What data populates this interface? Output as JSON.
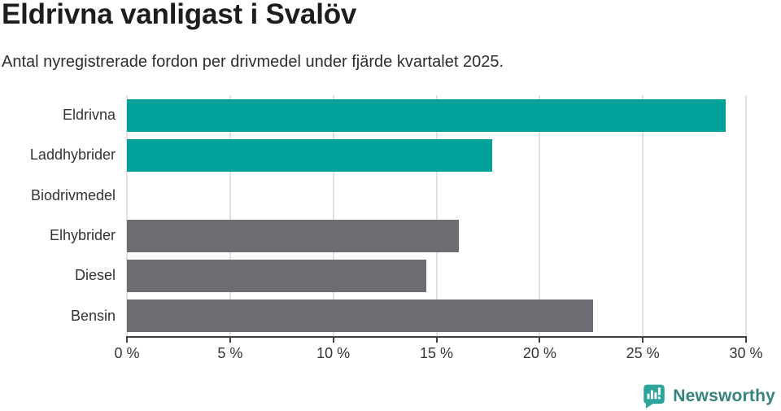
{
  "header": {
    "title": "Eldrivna vanligast i Svalöv",
    "subtitle": "Antal nyregistrerade fordon per drivmedel under fjärde kvartalet 2025."
  },
  "chart_data": {
    "type": "bar",
    "orientation": "horizontal",
    "categories": [
      "Eldrivna",
      "Laddhybrider",
      "Biodrivmedel",
      "Elhybrider",
      "Diesel",
      "Bensin"
    ],
    "values": [
      29.0,
      17.7,
      0,
      16.1,
      14.5,
      22.6
    ],
    "unit": "%",
    "xlim": [
      0,
      30
    ],
    "x_ticks": [
      0,
      5,
      10,
      15,
      20,
      25,
      30
    ],
    "x_tick_labels": [
      "0 %",
      "5 %",
      "10 %",
      "15 %",
      "20 %",
      "25 %",
      "30 %"
    ],
    "bar_colors": [
      "#00a29a",
      "#00a29a",
      "#00a29a",
      "#6c6d72",
      "#6c6d72",
      "#6c6d72"
    ],
    "grid": "vertical-only",
    "legend": "none",
    "xlabel": "",
    "ylabel": ""
  },
  "colors": {
    "accent_teal": "#00a29a",
    "neutral_gray": "#6c6d72",
    "gridline": "#e1e1e1",
    "axis": "#414141",
    "title_text": "#1d1d1b",
    "label_text": "#333333",
    "brand_teal": "#35837e",
    "brand_icon_teal": "#2da49c"
  },
  "footer": {
    "brand": "Newsworthy",
    "icon": "newsworthy-speech-bubble-bar-chart-icon"
  }
}
